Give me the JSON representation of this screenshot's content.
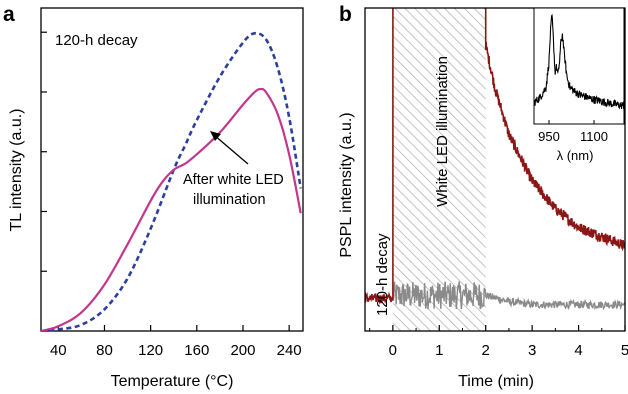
{
  "chart_data": [
    {
      "panel": "a",
      "type": "line",
      "title": "120-h decay",
      "xlabel": "Temperature (°C)",
      "ylabel": "TL intensity (a.u.)",
      "xlim": [
        25,
        252
      ],
      "ylim": [
        0,
        1.0
      ],
      "xticks": [
        40,
        80,
        120,
        160,
        200,
        240
      ],
      "annotation": [
        "After white LED",
        "illumination"
      ],
      "series": [
        {
          "style": "dashed",
          "color": "#2d3f9e",
          "x": [
            25,
            40,
            60,
            80,
            100,
            120,
            140,
            150,
            160,
            180,
            200,
            210,
            220,
            230,
            240,
            250
          ],
          "y": [
            0.0,
            0.005,
            0.02,
            0.07,
            0.17,
            0.33,
            0.52,
            0.6,
            0.68,
            0.82,
            0.93,
            0.96,
            0.94,
            0.85,
            0.69,
            0.46
          ]
        },
        {
          "style": "solid",
          "color": "#c2378d",
          "x": [
            25,
            40,
            60,
            80,
            100,
            120,
            130,
            140,
            150,
            160,
            180,
            200,
            210,
            215,
            220,
            230,
            240,
            250
          ],
          "y": [
            0.0,
            0.015,
            0.06,
            0.15,
            0.28,
            0.42,
            0.48,
            0.52,
            0.54,
            0.57,
            0.64,
            0.73,
            0.77,
            0.78,
            0.77,
            0.7,
            0.57,
            0.38
          ]
        }
      ]
    },
    {
      "panel": "b",
      "type": "line",
      "xlabel": "Time (min)",
      "ylabel": "PSPL intensity (a.u.)",
      "xlim": [
        -0.6,
        5.0
      ],
      "ylim": [
        0,
        1.0
      ],
      "xticks": [
        0,
        1,
        2,
        3,
        4,
        5
      ],
      "labels": {
        "decay": "120-h decay",
        "shaded": "White LED illumination"
      },
      "shaded_region": [
        0,
        2
      ],
      "series": [
        {
          "color": "#8b1616",
          "x": [
            -0.6,
            -0.3,
            -0.05,
            0.0,
            0.0,
            2.0,
            2.0,
            2.2,
            2.5,
            3.0,
            3.5,
            4.0,
            4.5,
            5.0
          ],
          "y": [
            0.06,
            0.06,
            0.06,
            0.06,
            1.0,
            1.0,
            0.88,
            0.74,
            0.59,
            0.44,
            0.35,
            0.29,
            0.26,
            0.23
          ]
        },
        {
          "color": "#8a8a8a",
          "x": [
            0.0,
            0.5,
            1.0,
            1.5,
            2.0,
            2.5,
            3.0,
            3.5,
            4.0,
            4.5,
            5.0
          ],
          "y": [
            0.07,
            0.07,
            0.07,
            0.07,
            0.07,
            0.05,
            0.04,
            0.04,
            0.04,
            0.04,
            0.04
          ]
        }
      ],
      "inset": {
        "xlabel": "λ (nm)",
        "xticks": [
          950,
          1100
        ],
        "xlim": [
          900,
          1200
        ],
        "x": [
          900,
          920,
          940,
          950,
          955,
          960,
          965,
          970,
          975,
          980,
          985,
          990,
          995,
          1000,
          1010,
          1020,
          1040,
          1060,
          1080,
          1100,
          1130,
          1160,
          1200
        ],
        "y": [
          0.15,
          0.2,
          0.3,
          0.55,
          0.85,
          1.0,
          0.75,
          0.45,
          0.5,
          0.42,
          0.55,
          0.75,
          0.82,
          0.65,
          0.4,
          0.3,
          0.25,
          0.22,
          0.2,
          0.18,
          0.16,
          0.14,
          0.12
        ]
      }
    }
  ]
}
